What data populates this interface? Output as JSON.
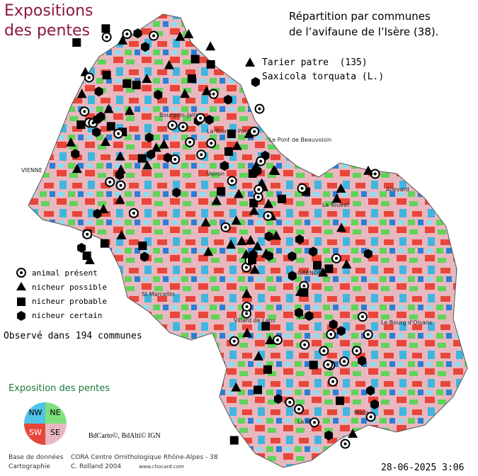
{
  "header": {
    "title_lines": [
      "Expositions",
      "des pentes"
    ],
    "heading_lines": [
      "Répartition par communes",
      "de l’avifaune de l’Isère (38)."
    ],
    "species_common": "Tarier patre  (135)",
    "species_latin": "Saxicola torquata (L.)"
  },
  "legend": {
    "items": [
      "animal présent",
      "nicheur possible",
      "nicheur probable",
      "nicheur certain"
    ],
    "observed": "Observé dans 194 communes"
  },
  "exposure": {
    "title": "Exposition des pentes",
    "quadrants": [
      "NW",
      "NE",
      "SW",
      "SE"
    ]
  },
  "towns": [
    "VIENNE",
    "Bourgoin-Jallieu",
    "La Tour du Pin",
    "Le Pont de Beauvoisin",
    "Voiron",
    "St Marcellin",
    "GRENOBLE",
    "Vizille",
    "Allevard",
    "Le Touvet",
    "Le Bourg d'Oisans",
    "La Mure",
    "Mens",
    "Villard de Lans"
  ],
  "credits": {
    "source": "BdCarto©, BdAlti© IGN",
    "db_label": "Base de données",
    "db_value": "CORA Centre Ornithologique Rhône-Alpes - 38",
    "carto_label": "Cartographie",
    "carto_value": "C. Rolland 2004",
    "website": "www.chocard.com",
    "date": "28-06-2025 3:06"
  }
}
